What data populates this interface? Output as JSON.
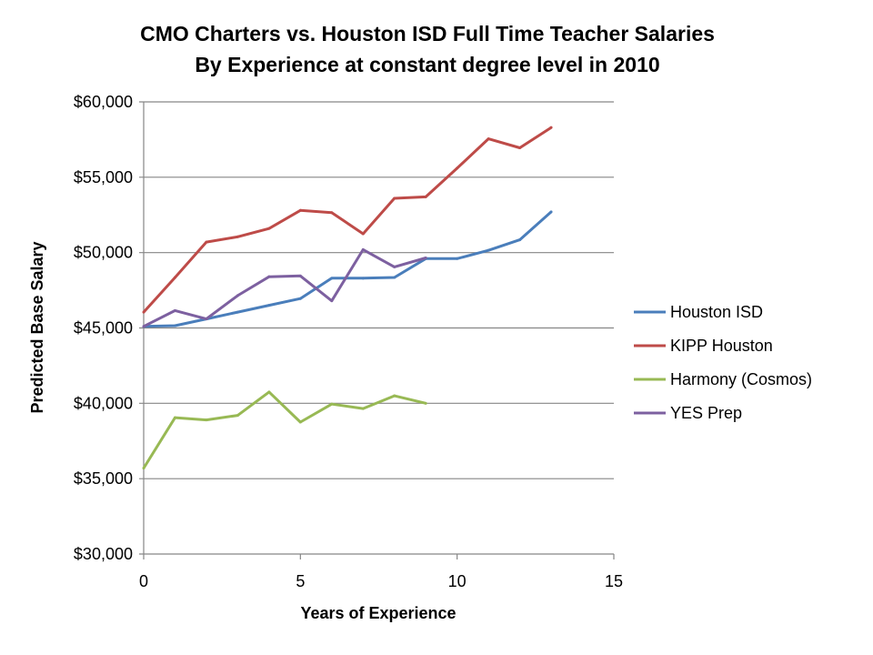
{
  "chart_data": {
    "type": "line",
    "title": "CMO Charters vs. Houston ISD Full Time Teacher Salaries",
    "subtitle": "By Experience at constant degree level in 2010",
    "xlabel": "Years of Experience",
    "ylabel": "Predicted Base Salary",
    "xlim": [
      0,
      15
    ],
    "ylim": [
      30000,
      60000
    ],
    "xticks": [
      0,
      5,
      10,
      15
    ],
    "yticks": [
      30000,
      35000,
      40000,
      45000,
      50000,
      55000,
      60000
    ],
    "ytick_labels": [
      "$30,000",
      "$35,000",
      "$40,000",
      "$45,000",
      "$50,000",
      "$55,000",
      "$60,000"
    ],
    "grid": "horizontal",
    "legend_position": "right",
    "series": [
      {
        "name": "Houston ISD",
        "color": "#4a7ebb",
        "x": [
          0,
          1,
          2,
          3,
          4,
          5,
          6,
          7,
          8,
          9,
          10,
          11,
          12,
          13
        ],
        "values": [
          45100,
          45150,
          45600,
          46050,
          46500,
          46950,
          48300,
          48300,
          48350,
          49600,
          49600,
          50150,
          50850,
          52700
        ]
      },
      {
        "name": "KIPP Houston",
        "color": "#be4b48",
        "x": [
          0,
          1,
          2,
          3,
          4,
          5,
          6,
          7,
          8,
          9,
          10,
          11,
          12,
          13
        ],
        "values": [
          46050,
          48350,
          50700,
          51050,
          51600,
          52800,
          52650,
          51250,
          53600,
          53700,
          55600,
          57550,
          56950,
          58300
        ]
      },
      {
        "name": "Harmony (Cosmos)",
        "color": "#98b954",
        "x": [
          0,
          1,
          2,
          3,
          4,
          5,
          6,
          7,
          8,
          9
        ],
        "values": [
          35700,
          39050,
          38900,
          39200,
          40750,
          38750,
          39950,
          39650,
          40500,
          40000
        ]
      },
      {
        "name": "YES Prep",
        "color": "#7d60a0",
        "x": [
          0,
          1,
          2,
          3,
          4,
          5,
          6,
          7,
          8,
          9
        ],
        "values": [
          45100,
          46150,
          45600,
          47150,
          48400,
          48450,
          46800,
          50200,
          49050,
          49650
        ]
      }
    ]
  }
}
